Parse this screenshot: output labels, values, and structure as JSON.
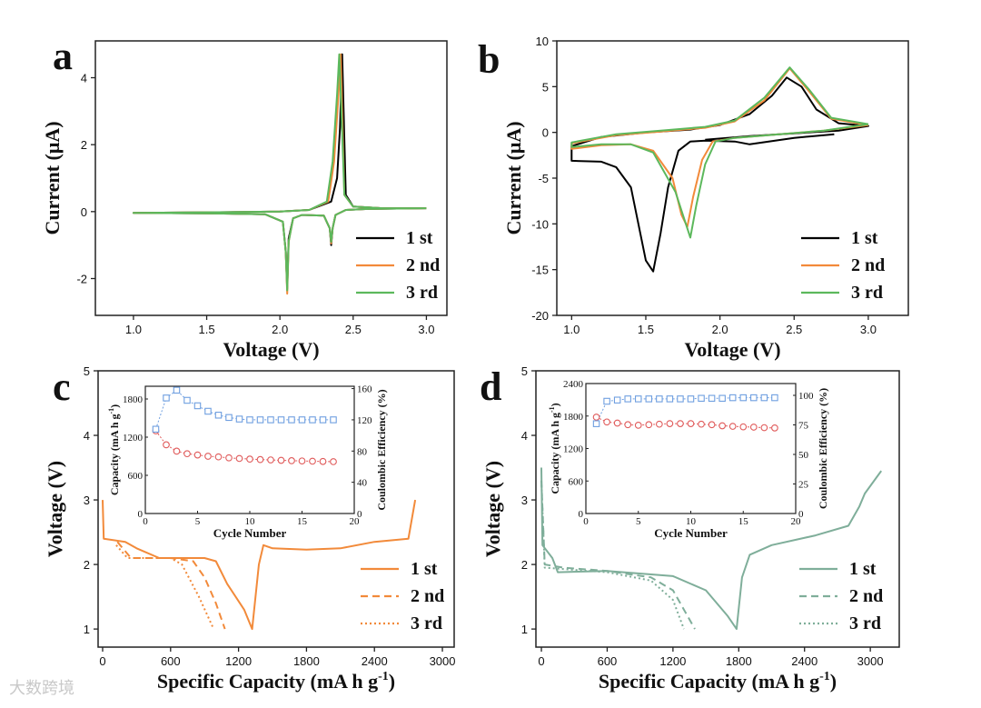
{
  "watermark": "大数跨境",
  "chart_data": [
    {
      "panel": "a",
      "type": "line",
      "xlabel": "Voltage (V)",
      "ylabel": "Current (μA)",
      "ylabel_sup": "",
      "xlim": [
        0.74,
        3.14
      ],
      "ylim": [
        -3.1,
        5.1
      ],
      "xticks": [
        1.0,
        1.5,
        2.0,
        2.5,
        3.0
      ],
      "xtick_labels": [
        "1.0",
        "1.5",
        "2.0",
        "2.5",
        "3.0"
      ],
      "yticks": [
        -2,
        0,
        2,
        4
      ],
      "ytick_labels": [
        "-2",
        "0",
        "2",
        "4"
      ],
      "legend": "bottom-right",
      "series": [
        {
          "name": "1 st",
          "color": "#000000",
          "dash": "",
          "x": [
            3.0,
            2.6,
            2.45,
            2.38,
            2.36,
            2.35,
            2.34,
            2.3,
            2.15,
            2.09,
            2.06,
            2.05,
            2.04,
            2.02,
            1.9,
            1.5,
            1.0,
            1.0,
            1.5,
            2.0,
            2.2,
            2.35,
            2.39,
            2.41,
            2.425,
            2.435,
            2.45,
            2.5,
            2.7,
            3.0
          ],
          "y": [
            0.1,
            0.08,
            0.05,
            -0.1,
            -0.5,
            -1.0,
            -0.5,
            -0.12,
            -0.1,
            -0.2,
            -0.8,
            -2.3,
            -1.2,
            -0.3,
            -0.08,
            -0.05,
            -0.04,
            -0.04,
            -0.02,
            0,
            0.05,
            0.3,
            1.0,
            2.5,
            4.7,
            3.0,
            0.5,
            0.15,
            0.1,
            0.1
          ]
        },
        {
          "name": "2 nd",
          "color": "#f28a3a",
          "dash": "",
          "x": [
            3.0,
            2.6,
            2.45,
            2.38,
            2.36,
            2.35,
            2.34,
            2.3,
            2.15,
            2.09,
            2.06,
            2.05,
            2.04,
            2.02,
            1.9,
            1.5,
            1.0,
            1.0,
            1.5,
            2.0,
            2.2,
            2.33,
            2.37,
            2.4,
            2.415,
            2.425,
            2.44,
            2.5,
            2.7,
            3.0
          ],
          "y": [
            0.1,
            0.08,
            0.05,
            -0.1,
            -0.5,
            -0.95,
            -0.5,
            -0.12,
            -0.1,
            -0.2,
            -0.9,
            -2.45,
            -1.2,
            -0.3,
            -0.08,
            -0.05,
            -0.04,
            -0.04,
            -0.02,
            0,
            0.05,
            0.3,
            1.5,
            3.5,
            4.7,
            3.0,
            0.5,
            0.15,
            0.1,
            0.1
          ]
        },
        {
          "name": "3 rd",
          "color": "#5cb85c",
          "dash": "",
          "x": [
            3.0,
            2.6,
            2.45,
            2.38,
            2.36,
            2.35,
            2.34,
            2.3,
            2.15,
            2.09,
            2.06,
            2.05,
            2.04,
            2.02,
            1.9,
            1.5,
            1.0,
            1.0,
            1.5,
            2.0,
            2.2,
            2.32,
            2.36,
            2.39,
            2.405,
            2.42,
            2.44,
            2.5,
            2.7,
            3.0
          ],
          "y": [
            0.1,
            0.08,
            0.05,
            -0.1,
            -0.5,
            -0.9,
            -0.5,
            -0.12,
            -0.1,
            -0.2,
            -0.9,
            -2.35,
            -1.2,
            -0.3,
            -0.08,
            -0.05,
            -0.04,
            -0.04,
            -0.02,
            0,
            0.05,
            0.3,
            1.5,
            3.5,
            4.7,
            3.0,
            0.5,
            0.15,
            0.1,
            0.1
          ]
        }
      ]
    },
    {
      "panel": "b",
      "type": "line",
      "xlabel": "Voltage (V)",
      "ylabel": "Current (μA)",
      "ylabel_sup": "",
      "xlim": [
        0.9,
        3.27
      ],
      "ylim": [
        -20,
        10
      ],
      "xticks": [
        1.0,
        1.5,
        2.0,
        2.5,
        3.0
      ],
      "xtick_labels": [
        "1.0",
        "1.5",
        "2.0",
        "2.5",
        "3.0"
      ],
      "yticks": [
        -20,
        -15,
        -10,
        -5,
        0,
        5,
        10
      ],
      "ytick_labels": [
        "-20",
        "-15",
        "-10",
        "-5",
        "0",
        "5",
        "10"
      ],
      "legend": "bottom-right",
      "series": [
        {
          "name": "1 st",
          "color": "#000000",
          "dash": "",
          "x": [
            2.77,
            2.5,
            2.2,
            2.1,
            1.9,
            1.8,
            1.72,
            1.65,
            1.6,
            1.55,
            1.5,
            1.45,
            1.4,
            1.3,
            1.2,
            1.0,
            1.0,
            1.2,
            1.5,
            1.8,
            2.0,
            2.2,
            2.35,
            2.45,
            2.55,
            2.65,
            2.8,
            3.0,
            2.8,
            2.5,
            2.2,
            1.9
          ],
          "y": [
            -0.2,
            -0.6,
            -1.3,
            -1.0,
            -0.9,
            -1.0,
            -2.0,
            -6.0,
            -11.0,
            -15.2,
            -14.0,
            -10.0,
            -6.0,
            -3.8,
            -3.2,
            -3.1,
            -1.5,
            -0.5,
            0,
            0.3,
            0.8,
            2.0,
            4.0,
            6.0,
            5.0,
            2.5,
            1.0,
            0.7,
            0.2,
            -0.1,
            -0.4,
            -0.8
          ]
        },
        {
          "name": "2 nd",
          "color": "#f28a3a",
          "dash": "",
          "x": [
            3.0,
            2.7,
            2.4,
            2.1,
            1.95,
            1.88,
            1.82,
            1.78,
            1.74,
            1.68,
            1.55,
            1.4,
            1.2,
            1.0,
            1.0,
            1.3,
            1.6,
            1.9,
            2.1,
            2.3,
            2.47,
            2.6,
            2.75,
            3.0
          ],
          "y": [
            0.8,
            0.2,
            -0.2,
            -0.6,
            -1.0,
            -3.0,
            -7.0,
            -10.3,
            -9.0,
            -5.0,
            -2.0,
            -1.3,
            -1.4,
            -1.8,
            -1.2,
            -0.3,
            0.1,
            0.5,
            1.2,
            3.5,
            7.0,
            4.5,
            1.5,
            0.8
          ]
        },
        {
          "name": "3 rd",
          "color": "#5cb85c",
          "dash": "",
          "x": [
            3.0,
            2.7,
            2.4,
            2.1,
            1.97,
            1.9,
            1.84,
            1.8,
            1.76,
            1.7,
            1.55,
            1.4,
            1.2,
            1.0,
            1.0,
            1.3,
            1.6,
            1.9,
            2.1,
            2.3,
            2.47,
            2.6,
            2.75,
            3.0
          ],
          "y": [
            0.9,
            0.2,
            -0.2,
            -0.6,
            -1.0,
            -3.5,
            -8.0,
            -11.5,
            -9.5,
            -6.5,
            -2.2,
            -1.3,
            -1.3,
            -1.6,
            -1.1,
            -0.2,
            0.2,
            0.6,
            1.3,
            3.8,
            7.1,
            4.7,
            1.6,
            0.9
          ]
        }
      ]
    },
    {
      "panel": "c",
      "type": "line",
      "xlabel": "Specific Capacity (mA h g",
      "xlabel_sup": "-1",
      "xlabel_end": ")",
      "ylabel": "Voltage (V)",
      "xlim": [
        -40,
        3104
      ],
      "ylim": [
        0.72,
        5
      ],
      "xticks": [
        0,
        600,
        1200,
        1800,
        2400,
        3000
      ],
      "xtick_labels": [
        "0",
        "600",
        "1200",
        "1800",
        "2400",
        "3000"
      ],
      "yticks": [
        1,
        2,
        3,
        4,
        5
      ],
      "ytick_labels": [
        "1",
        "2",
        "3",
        "4",
        "5"
      ],
      "legend": "bottom-right",
      "series": [
        {
          "name": "1 st",
          "color": "#f28a3a",
          "dash": "",
          "x": [
            0,
            10,
            200,
            300,
            500,
            900,
            1000,
            1100,
            1250,
            1320,
            1380,
            1420,
            1500,
            1800,
            2100,
            2400,
            2700,
            2760
          ],
          "y": [
            3.0,
            2.4,
            2.35,
            2.25,
            2.1,
            2.1,
            2.05,
            1.7,
            1.3,
            1.0,
            2.0,
            2.3,
            2.25,
            2.23,
            2.25,
            2.35,
            2.4,
            3.0
          ]
        },
        {
          "name": "2 nd",
          "color": "#f28a3a",
          "dash": "8,5",
          "x": [
            130,
            250,
            600,
            800,
            900,
            1000,
            1080
          ],
          "y": [
            2.35,
            2.1,
            2.1,
            2.05,
            1.8,
            1.4,
            1.0
          ]
        },
        {
          "name": "3 rd",
          "color": "#f28a3a",
          "dash": "2,3",
          "x": [
            120,
            220,
            600,
            700,
            850,
            980
          ],
          "y": [
            2.3,
            2.1,
            2.1,
            2.0,
            1.5,
            1.0
          ]
        }
      ],
      "inset": {
        "type": "scatter",
        "xlabel": "Cycle Number",
        "ylabel_left": "Capacity (mA h g",
        "ylabel_left_sup": "-1",
        "ylabel_left_end": ")",
        "ylabel_right": "Coulombic Efficiency (%)",
        "xlim": [
          0,
          20
        ],
        "ylim_left": [
          0,
          2000
        ],
        "ylim_right": [
          0,
          163
        ],
        "xticks": [
          0,
          5,
          10,
          15,
          20
        ],
        "yticks_left": [
          0,
          600,
          1200,
          1800
        ],
        "yticks_right": [
          0,
          40,
          80,
          120,
          160
        ],
        "cycles": [
          1,
          2,
          3,
          4,
          5,
          6,
          7,
          8,
          9,
          10,
          11,
          12,
          13,
          14,
          15,
          16,
          17,
          18
        ],
        "capacity": {
          "color": "#e05a5a",
          "marker": "circle",
          "values": [
            1300,
            1080,
            980,
            940,
            920,
            900,
            890,
            875,
            865,
            855,
            848,
            842,
            836,
            830,
            826,
            822,
            818,
            815
          ]
        },
        "coulombic_efficiency": {
          "color": "#6f9fe0",
          "marker": "square",
          "values": [
            108,
            148,
            158,
            145,
            138,
            131,
            126,
            123,
            121,
            120,
            120,
            120,
            120,
            120,
            120,
            120,
            120,
            120
          ]
        }
      }
    },
    {
      "panel": "d",
      "type": "line",
      "xlabel": "Specific Capacity (mA h g",
      "xlabel_sup": "-1",
      "xlabel_end": ")",
      "ylabel": "Voltage (V)",
      "xlim": [
        -50,
        3264
      ],
      "ylim": [
        0.72,
        5
      ],
      "xticks": [
        0,
        600,
        1200,
        1800,
        2400,
        3000
      ],
      "xtick_labels": [
        "0",
        "600",
        "1200",
        "1800",
        "2400",
        "3000"
      ],
      "yticks": [
        1,
        2,
        3,
        4,
        5
      ],
      "ytick_labels": [
        "1",
        "2",
        "3",
        "4",
        "5"
      ],
      "legend": "bottom-right",
      "series": [
        {
          "name": "1 st",
          "color": "#7fae9a",
          "dash": "",
          "x": [
            0,
            10,
            100,
            150,
            600,
            1200,
            1500,
            1700,
            1780,
            1830,
            1900,
            2100,
            2500,
            2800,
            2900,
            2950,
            3100
          ],
          "y": [
            3.5,
            2.3,
            2.1,
            1.88,
            1.9,
            1.82,
            1.6,
            1.2,
            1.0,
            1.8,
            2.15,
            2.3,
            2.45,
            2.6,
            2.9,
            3.1,
            3.45
          ]
        },
        {
          "name": "2 nd",
          "color": "#7fae9a",
          "dash": "8,5",
          "x": [
            0,
            30,
            200,
            600,
            1000,
            1200,
            1400
          ],
          "y": [
            3.3,
            2.0,
            1.95,
            1.9,
            1.8,
            1.6,
            1.0
          ]
        },
        {
          "name": "3 rd",
          "color": "#7fae9a",
          "dash": "2,3",
          "x": [
            0,
            30,
            600,
            1000,
            1200,
            1300
          ],
          "y": [
            3.3,
            1.95,
            1.88,
            1.75,
            1.45,
            1.0
          ]
        }
      ],
      "inset": {
        "type": "scatter",
        "xlabel": "Cycle Number",
        "ylabel_left": "Capacity (mA h g",
        "ylabel_left_sup": "-1",
        "ylabel_left_end": ")",
        "ylabel_right": "Coulombic Efficiency (%)",
        "xlim": [
          0,
          20
        ],
        "ylim_left": [
          0,
          2400
        ],
        "ylim_right": [
          0,
          110
        ],
        "xticks": [
          0,
          5,
          10,
          15,
          20
        ],
        "yticks_left": [
          0,
          600,
          1200,
          1800,
          2400
        ],
        "yticks_right": [
          0,
          25,
          50,
          75,
          100
        ],
        "cycles": [
          1,
          2,
          3,
          4,
          5,
          6,
          7,
          8,
          9,
          10,
          11,
          12,
          13,
          14,
          15,
          16,
          17,
          18
        ],
        "capacity": {
          "color": "#e05a5a",
          "marker": "circle",
          "values": [
            1780,
            1690,
            1670,
            1640,
            1630,
            1640,
            1650,
            1660,
            1660,
            1660,
            1650,
            1640,
            1620,
            1610,
            1600,
            1595,
            1585,
            1580
          ]
        },
        "coulombic_efficiency": {
          "color": "#6f9fe0",
          "marker": "square",
          "values": [
            76,
            95,
            96,
            97,
            97,
            97,
            97,
            97,
            97,
            97,
            97.5,
            97.5,
            97.5,
            98,
            98,
            98,
            98,
            98
          ]
        }
      }
    }
  ]
}
